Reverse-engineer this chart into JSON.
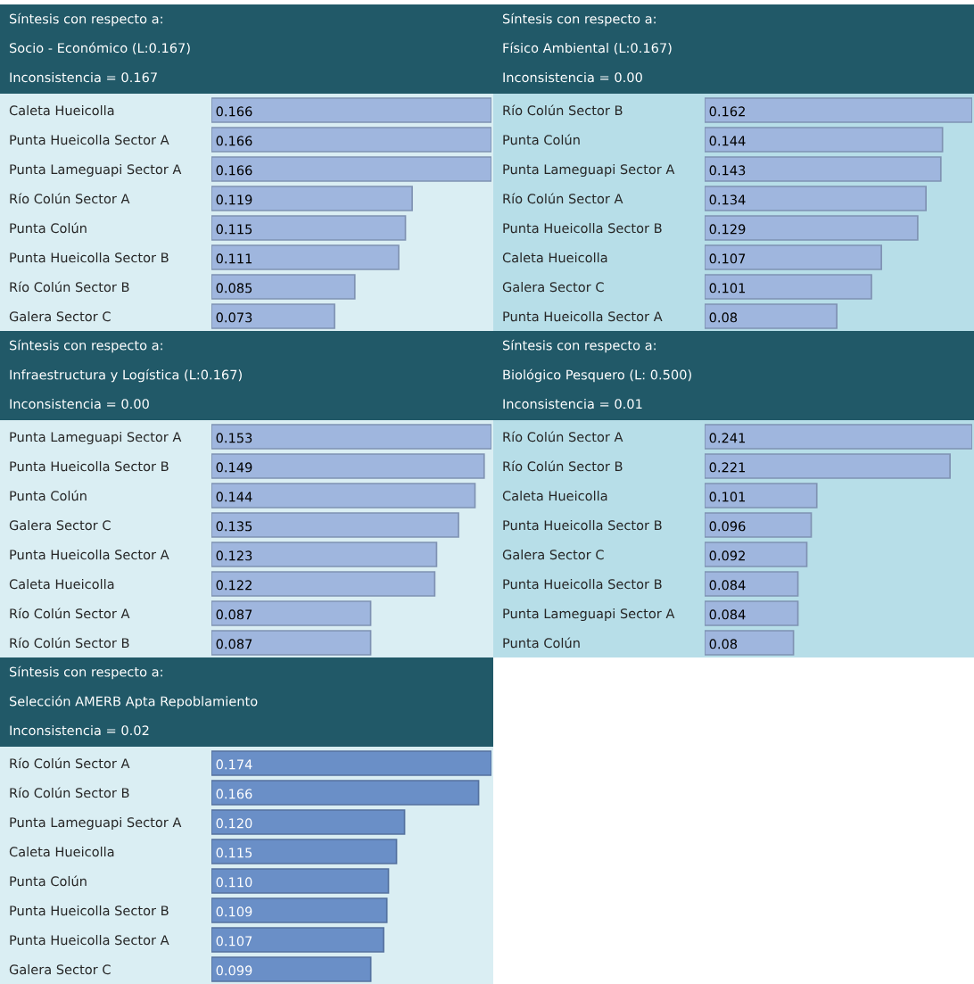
{
  "chart_data": [
    {
      "type": "bar",
      "orientation": "horizontal",
      "title": "Síntesis con respecto a:",
      "subtitle": "Socio - Económico (L:0.167)",
      "annotations": [
        "Inconsistencia = 0.167"
      ],
      "categories": [
        "Caleta Hueicolla",
        "Punta Hueicolla Sector A",
        "Punta Lameguapi Sector A",
        "Río Colún Sector A",
        "Punta Colún",
        "Punta Hueicolla Sector B",
        "Río Colún Sector B",
        "Galera Sector C"
      ],
      "series": [
        {
          "color": "#9fb6de",
          "values": [
            0.166,
            0.166,
            0.166,
            0.119,
            0.115,
            0.111,
            0.085,
            0.073
          ]
        }
      ],
      "data_labels": true,
      "tick_labels": "y",
      "grid": false,
      "legend": false
    },
    {
      "type": "bar",
      "orientation": "horizontal",
      "title": "Síntesis con respecto a:",
      "subtitle": "Físico Ambiental (L:0.167)",
      "annotations": [
        "Inconsistencia = 0.00"
      ],
      "categories": [
        "Río Colún Sector B",
        "Punta Colún",
        "Punta Lameguapi Sector A",
        "Río Colún Sector A",
        "Punta Hueicolla Sector B",
        "Caleta Hueicolla",
        "Galera Sector C",
        "Punta Hueicolla Sector A"
      ],
      "series": [
        {
          "color": "#9fb6de",
          "values": [
            0.162,
            0.144,
            0.143,
            0.134,
            0.129,
            0.107,
            0.101,
            0.08
          ]
        }
      ],
      "data_labels": true,
      "tick_labels": "y",
      "grid": false,
      "legend": false
    },
    {
      "type": "bar",
      "orientation": "horizontal",
      "title": "Síntesis con respecto a:",
      "subtitle": "Infraestructura y Logística (L:0.167)",
      "annotations": [
        "Inconsistencia = 0.00"
      ],
      "categories": [
        "Punta Lameguapi Sector A",
        "Punta Hueicolla Sector B",
        "Punta Colún",
        "Galera Sector C",
        "Punta Hueicolla Sector A",
        "Caleta Hueicolla",
        "Río Colún Sector A",
        "Río Colún Sector B"
      ],
      "series": [
        {
          "color": "#9fb6de",
          "values": [
            0.153,
            0.149,
            0.144,
            0.135,
            0.123,
            0.122,
            0.087,
            0.087
          ]
        }
      ],
      "data_labels": true,
      "tick_labels": "y",
      "grid": false,
      "legend": false
    },
    {
      "type": "bar",
      "orientation": "horizontal",
      "title": "Síntesis con respecto a:",
      "subtitle": "Biológico Pesquero (L: 0.500)",
      "annotations": [
        "Inconsistencia = 0.01"
      ],
      "categories": [
        "Río Colún Sector A",
        "Río Colún Sector B",
        "Caleta Hueicolla",
        "Punta Hueicolla Sector B",
        "Galera Sector C",
        "Punta Hueicolla Sector B",
        "Punta Lameguapi Sector A",
        "Punta Colún"
      ],
      "series": [
        {
          "color": "#9fb6de",
          "values": [
            0.241,
            0.221,
            0.101,
            0.096,
            0.092,
            0.084,
            0.084,
            0.08
          ]
        }
      ],
      "data_labels": true,
      "tick_labels": "y",
      "grid": false,
      "legend": false
    },
    {
      "type": "bar",
      "orientation": "horizontal",
      "title": "Síntesis con respecto a:",
      "subtitle": "Selección AMERB Apta Repoblamiento",
      "annotations": [
        "Inconsistencia = 0.02"
      ],
      "categories": [
        "Río Colún Sector A",
        "Río Colún Sector B",
        "Punta Lameguapi Sector A",
        "Caleta Hueicolla",
        "Punta Colún",
        "Punta Hueicolla Sector B",
        "Punta Hueicolla Sector A",
        "Galera Sector C"
      ],
      "series": [
        {
          "color": "#6a8fc7",
          "values": [
            0.174,
            0.166,
            0.12,
            0.115,
            0.11,
            0.109,
            0.107,
            0.099
          ],
          "value_labels": [
            "0.174",
            "0.166",
            "0.120",
            "0.115",
            "0.110",
            "0.109",
            "0.107",
            "0.099"
          ]
        }
      ],
      "tick_labels": "y",
      "grid": false,
      "legend": false
    }
  ]
}
